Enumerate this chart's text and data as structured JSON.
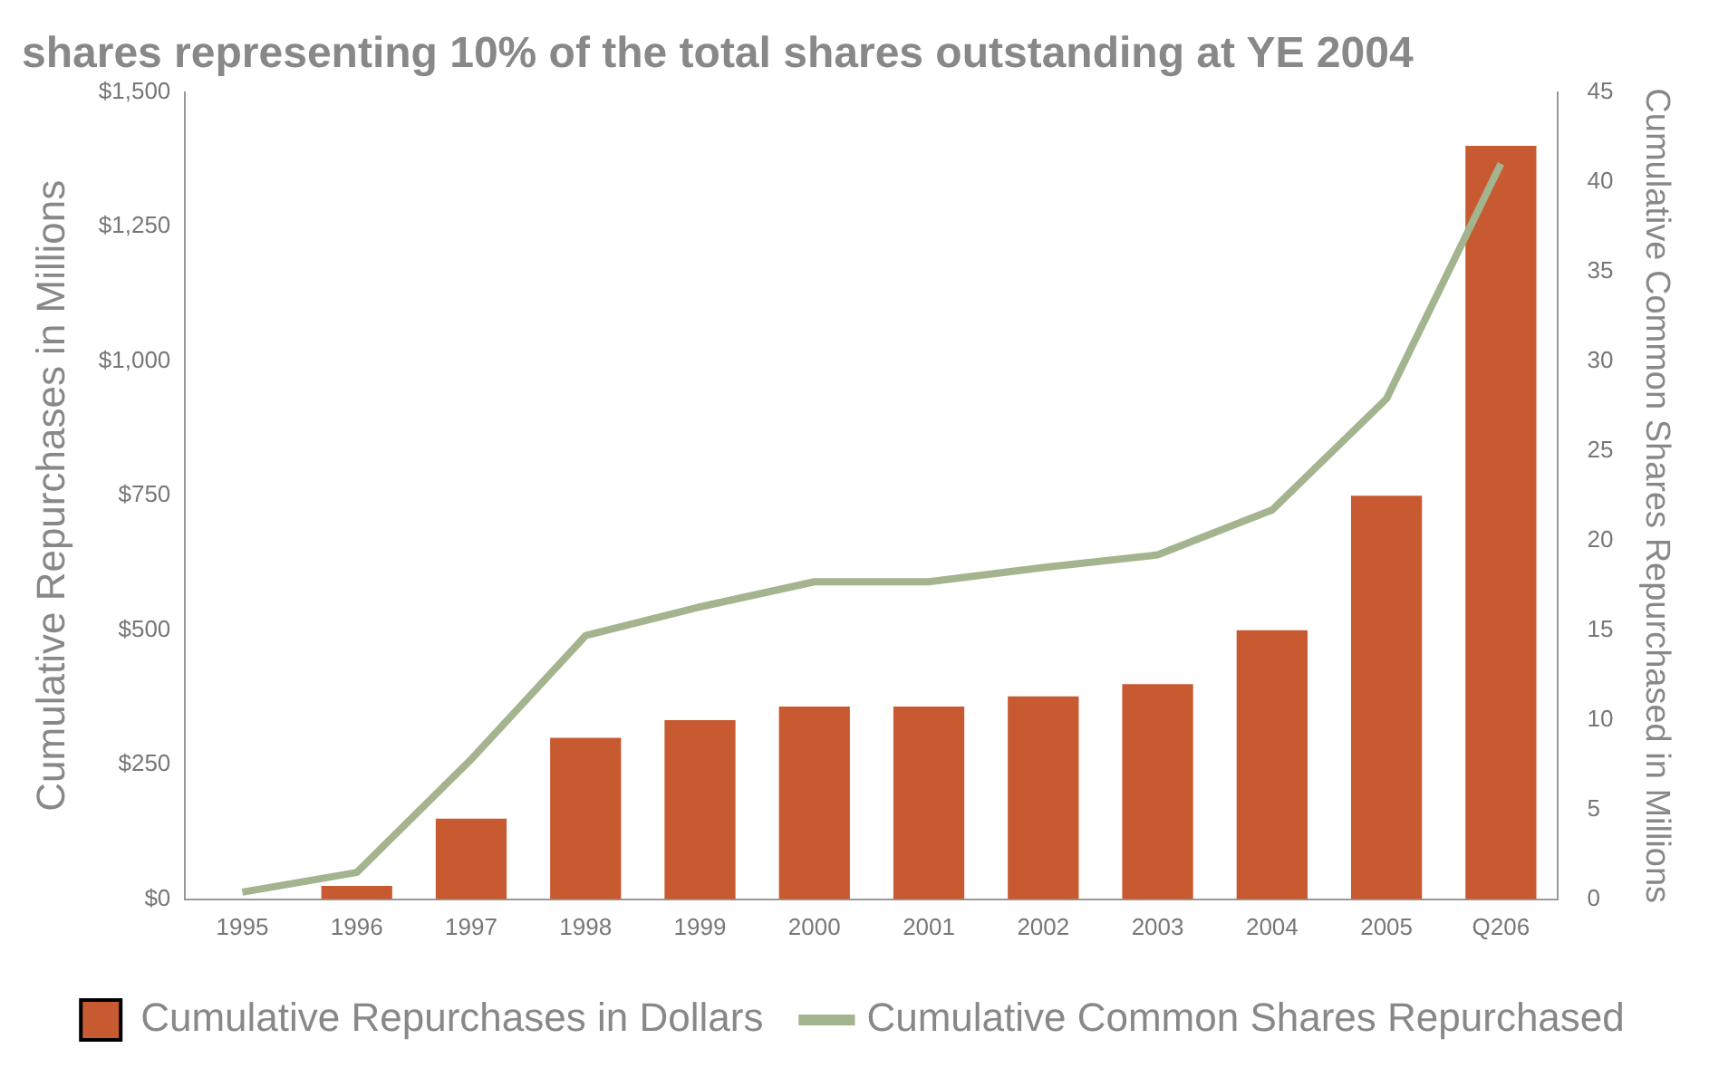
{
  "chart_data": {
    "type": "bar",
    "title": "shares representing 10% of the total shares outstanding at YE 2004",
    "ylabel": "Cumulative Repurchases in Millions",
    "y2label": "Cumulative Common Shares Repurchased in Millions",
    "categories": [
      "1995",
      "1996",
      "1997",
      "1998",
      "1999",
      "2000",
      "2001",
      "2002",
      "2003",
      "2004",
      "2005",
      "Q206"
    ],
    "series": [
      {
        "name": "Cumulative Repurchases in Dollars",
        "color": "#c85a32",
        "values": [
          0,
          25,
          150,
          300,
          333,
          358,
          358,
          377,
          400,
          500,
          750,
          1400
        ]
      },
      {
        "name": "Cumulative Common Shares Repurchased",
        "type": "line",
        "axis": "y2",
        "color": "#a3b48f",
        "values": [
          0.4,
          1.5,
          7.8,
          14.7,
          16.3,
          17.7,
          17.7,
          18.5,
          19.2,
          21.7,
          27.9,
          41.0
        ]
      }
    ],
    "ylim": [
      0,
      1500
    ],
    "yticks": [
      {
        "value": 0,
        "label": "$0"
      },
      {
        "value": 250,
        "label": "$250"
      },
      {
        "value": 500,
        "label": "$500"
      },
      {
        "value": 750,
        "label": "$750"
      },
      {
        "value": 1000,
        "label": "$1,000"
      },
      {
        "value": 1250,
        "label": "$1,250"
      },
      {
        "value": 1500,
        "label": "$1,500"
      }
    ],
    "y2lim": [
      0,
      45
    ],
    "y2ticks": [
      0,
      5,
      10,
      15,
      20,
      25,
      30,
      35,
      40,
      45
    ],
    "grid": false,
    "legend": "bottom",
    "marker": "none"
  }
}
